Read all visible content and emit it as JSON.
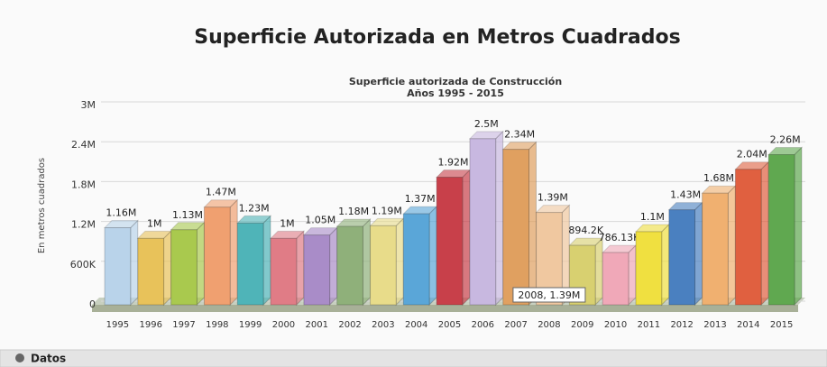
{
  "page_title": "Superficie Autorizada en Metros Cuadrados",
  "footer": "Datos",
  "chart_data": {
    "type": "bar3d",
    "title": "Superficie autorizada de Construcción",
    "subtitle": "Años 1995 - 2015",
    "y_label": "En metros cuadrados",
    "tooltip": "2008, 1.39M",
    "categories": [
      "1995",
      "1996",
      "1997",
      "1998",
      "1999",
      "2000",
      "2001",
      "2002",
      "2003",
      "2004",
      "2005",
      "2006",
      "2007",
      "2008",
      "2009",
      "2010",
      "2011",
      "2012",
      "2013",
      "2014",
      "2015"
    ],
    "values": [
      1160000,
      1000000,
      1130000,
      1470000,
      1230000,
      1000000,
      1050000,
      1180000,
      1190000,
      1370000,
      1920000,
      2500000,
      2340000,
      1390000,
      894200,
      786130,
      1100000,
      1430000,
      1680000,
      2040000,
      2260000
    ],
    "value_labels": [
      "1.16M",
      "1M",
      "1.13M",
      "1.47M",
      "1.23M",
      "1M",
      "1.05M",
      "1.18M",
      "1.19M",
      "1.37M",
      "1.92M",
      "2.5M",
      "2.34M",
      "1.39M",
      "894.2K",
      "786.13K",
      "1.1M",
      "1.43M",
      "1.68M",
      "2.04M",
      "2.26M"
    ],
    "colors": [
      "#b9d3ea",
      "#e8c25a",
      "#a9c94e",
      "#f0a070",
      "#4fb4b8",
      "#e07c86",
      "#a98cc8",
      "#8fb07a",
      "#e8dc8a",
      "#5aa6d8",
      "#c8404a",
      "#c8b8e0",
      "#e0a060",
      "#f0c8a0",
      "#d8d070",
      "#f0a8b8",
      "#f0e040",
      "#4a80c0",
      "#f0b070",
      "#e06040",
      "#60a850"
    ],
    "ylim": [
      0,
      3000000
    ],
    "yticks": [
      0,
      {
        "value": 600000,
        "label": "600K"
      },
      {
        "value": 1200000,
        "label": "1.2M"
      },
      {
        "value": 1800000,
        "label": "1.8M"
      },
      {
        "value": 2400000,
        "label": "2.4M"
      },
      {
        "value": 3000000,
        "label": "3M"
      }
    ],
    "grid": true
  }
}
